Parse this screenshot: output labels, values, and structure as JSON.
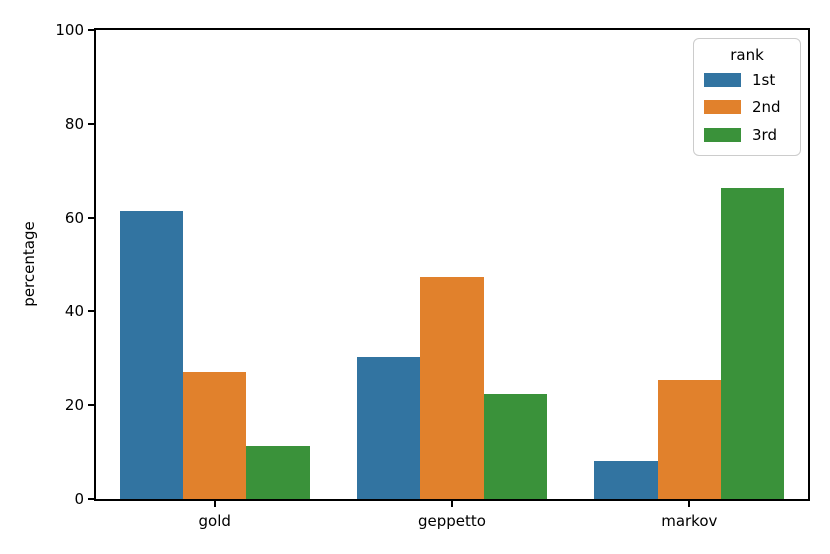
{
  "chart_data": {
    "type": "bar",
    "title": "",
    "xlabel": "",
    "ylabel": "percentage",
    "ylim": [
      0,
      100
    ],
    "yticks": [
      0,
      20,
      40,
      60,
      80,
      100
    ],
    "grid": false,
    "categories": [
      "gold",
      "geppetto",
      "markov"
    ],
    "series": [
      {
        "name": "1st",
        "color": "#3274a1",
        "values": [
          61.5,
          30.2,
          8.0
        ]
      },
      {
        "name": "2nd",
        "color": "#e1812c",
        "values": [
          27.0,
          47.4,
          25.3
        ]
      },
      {
        "name": "3rd",
        "color": "#3a923a",
        "values": [
          11.2,
          22.4,
          66.3
        ]
      }
    ],
    "legend": {
      "title": "rank",
      "position": "upper right",
      "entries": [
        "1st",
        "2nd",
        "3rd"
      ]
    },
    "axis_color": "#000000",
    "legend_border_color": "#cccccc",
    "background_color": "#ffffff"
  }
}
